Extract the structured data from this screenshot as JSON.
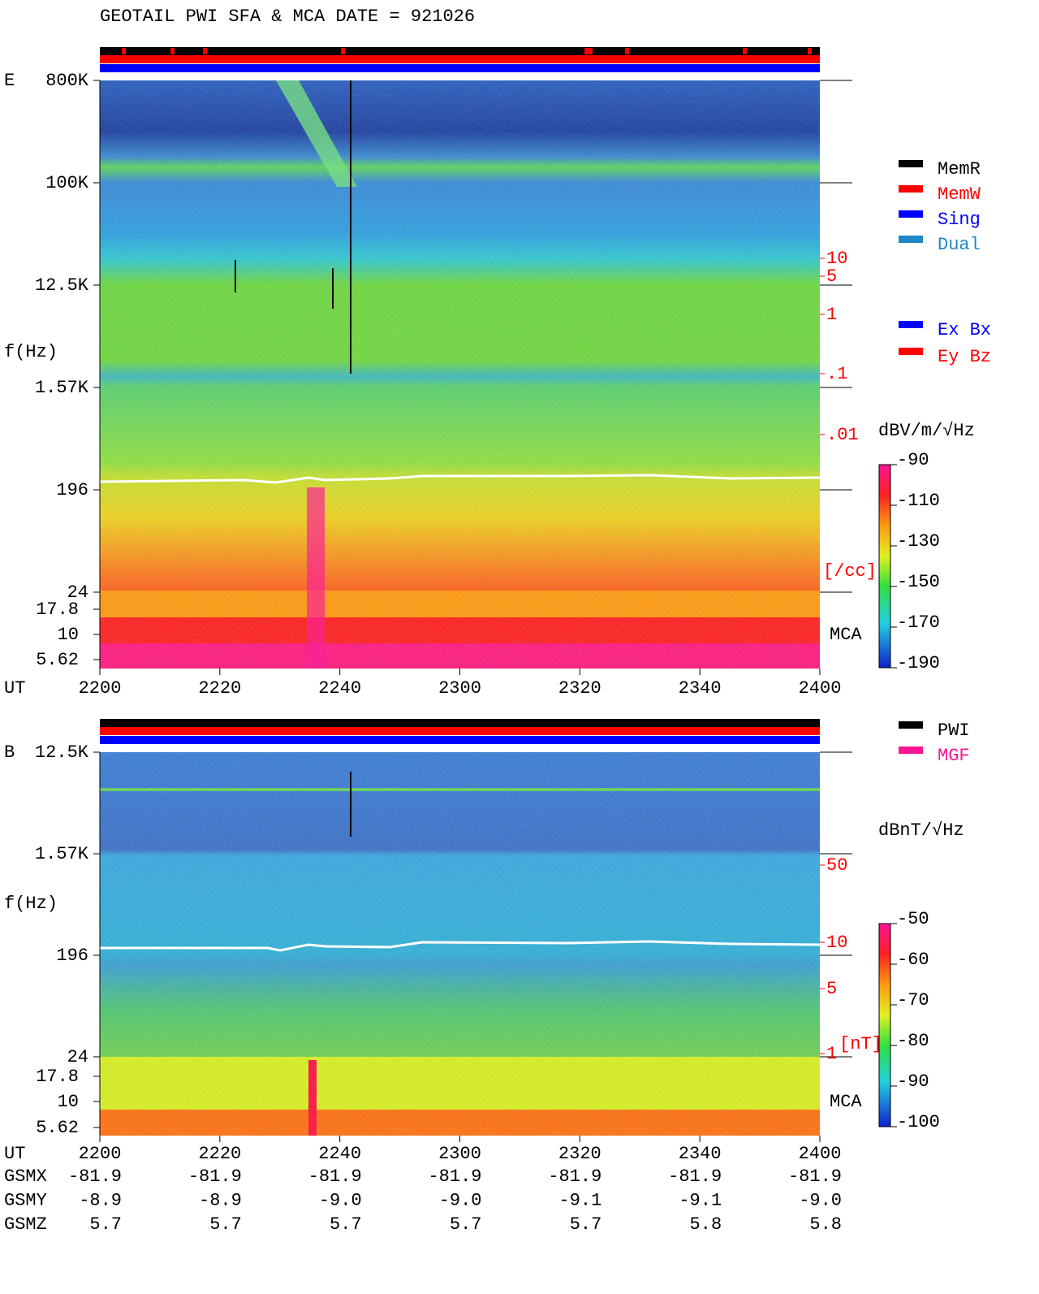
{
  "header": {
    "title": "GEOTAIL  PWI SFA & MCA   DATE = 921026"
  },
  "panels": [
    {
      "label": "E",
      "y_label": "f(Hz)",
      "freq_ticks": [
        "800K",
        "100K",
        "12.5K",
        "1.57K",
        "196",
        "24"
      ],
      "mca_ticks": [
        "17.8",
        "10",
        "5.62"
      ],
      "mca_label": "MCA",
      "right_ticks": [
        "10",
        "5",
        "1",
        ".1",
        ".01",
        "[/cc]"
      ],
      "time_label": "UT",
      "time_ticks": [
        "2200",
        "2220",
        "2240",
        "2300",
        "2320",
        "2340",
        "2400"
      ],
      "legend": [
        {
          "name": "MemR",
          "color": "#000000"
        },
        {
          "name": "MemW",
          "color": "#ff0000"
        },
        {
          "name": "Sing",
          "color": "#0000ff"
        },
        {
          "name": "Dual",
          "color": "#1e88c8"
        }
      ],
      "legend2": [
        {
          "name": "Ex Bx",
          "color": "#0000ff"
        },
        {
          "name": "Ey Bz",
          "color": "#ff0000"
        }
      ],
      "colorbar": {
        "unit": "dBV/m/√Hz",
        "ticks": [
          -90,
          -110,
          -130,
          -150,
          -170,
          -190
        ]
      }
    },
    {
      "label": "B",
      "y_label": "f(Hz)",
      "freq_ticks": [
        "12.5K",
        "1.57K",
        "196",
        "24"
      ],
      "mca_ticks": [
        "17.8",
        "10",
        "5.62"
      ],
      "mca_label": "MCA",
      "right_ticks": [
        "50",
        "10",
        "5",
        "1",
        "[nT]"
      ],
      "time_label": "UT",
      "time_ticks": [
        "2200",
        "2220",
        "2240",
        "2300",
        "2320",
        "2340",
        "2400"
      ],
      "legend": [
        {
          "name": "PWI",
          "color": "#000000"
        },
        {
          "name": "MGF",
          "color": "#ff1493"
        }
      ],
      "legend2": [],
      "colorbar": {
        "unit": "dBnT/√Hz",
        "ticks": [
          -50,
          -60,
          -70,
          -80,
          -90,
          -100
        ]
      }
    }
  ],
  "orbit": {
    "rows": [
      {
        "label": "GSMX",
        "values": [
          "-81.9",
          "-81.9",
          "-81.9",
          "-81.9",
          "-81.9",
          "-81.9",
          "-81.9"
        ]
      },
      {
        "label": "GSMY",
        "values": [
          "-8.9",
          "-8.9",
          "-9.0",
          "-9.0",
          "-9.1",
          "-9.1",
          "-9.0"
        ]
      },
      {
        "label": "GSMZ",
        "values": [
          "5.7",
          "5.7",
          "5.7",
          "5.7",
          "5.7",
          "5.8",
          "5.8"
        ]
      }
    ]
  }
}
